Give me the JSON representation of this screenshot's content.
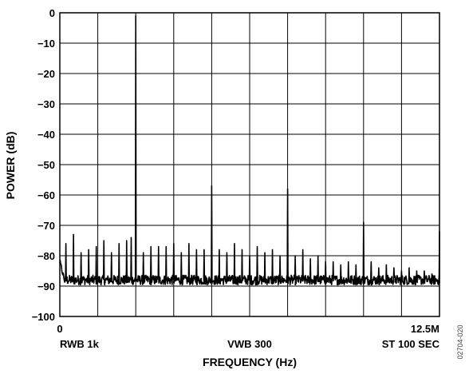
{
  "chart_data": {
    "type": "line",
    "title": "",
    "xlabel": "FREQUENCY (Hz)",
    "ylabel": "POWER (dB)",
    "xlim": [
      0,
      12.5
    ],
    "ylim": [
      -100,
      0
    ],
    "grid": true,
    "y_ticks": [
      "0",
      "−10",
      "−20",
      "−30",
      "−40",
      "−50",
      "−60",
      "−70",
      "−80",
      "−90",
      "−100"
    ],
    "x_tick_left": "0",
    "x_tick_right": "12.5M",
    "annotations": {
      "left": "RWB 1k",
      "center": "VWB 300",
      "right": "ST 100 SEC"
    },
    "figure_code": "02704-020",
    "noise_floor_db": -88,
    "peaks": [
      {
        "x": 2.5,
        "y": -1
      },
      {
        "x": 5.0,
        "y": -57
      },
      {
        "x": 7.5,
        "y": -58
      },
      {
        "x": 10.0,
        "y": -69
      },
      {
        "x": 12.5,
        "y": -72
      }
    ],
    "spurs": [
      {
        "x": 0.2,
        "y": -76
      },
      {
        "x": 0.45,
        "y": -73
      },
      {
        "x": 0.7,
        "y": -79
      },
      {
        "x": 0.95,
        "y": -78
      },
      {
        "x": 1.2,
        "y": -77
      },
      {
        "x": 1.45,
        "y": -75
      },
      {
        "x": 1.7,
        "y": -79
      },
      {
        "x": 1.95,
        "y": -76
      },
      {
        "x": 2.2,
        "y": -75
      },
      {
        "x": 2.35,
        "y": -74
      },
      {
        "x": 2.75,
        "y": -79
      },
      {
        "x": 3.0,
        "y": -77
      },
      {
        "x": 3.25,
        "y": -77
      },
      {
        "x": 3.5,
        "y": -77
      },
      {
        "x": 3.75,
        "y": -76
      },
      {
        "x": 4.0,
        "y": -79
      },
      {
        "x": 4.25,
        "y": -76
      },
      {
        "x": 4.5,
        "y": -78
      },
      {
        "x": 4.75,
        "y": -78
      },
      {
        "x": 5.25,
        "y": -78
      },
      {
        "x": 5.5,
        "y": -79
      },
      {
        "x": 5.75,
        "y": -76
      },
      {
        "x": 6.0,
        "y": -78
      },
      {
        "x": 6.25,
        "y": -80
      },
      {
        "x": 6.5,
        "y": -77
      },
      {
        "x": 6.75,
        "y": -79
      },
      {
        "x": 7.0,
        "y": -78
      },
      {
        "x": 7.25,
        "y": -80
      },
      {
        "x": 7.75,
        "y": -80
      },
      {
        "x": 8.0,
        "y": -78
      },
      {
        "x": 8.25,
        "y": -81
      },
      {
        "x": 8.5,
        "y": -80
      },
      {
        "x": 8.75,
        "y": -82
      },
      {
        "x": 9.0,
        "y": -82
      },
      {
        "x": 9.25,
        "y": -83
      },
      {
        "x": 9.5,
        "y": -82
      },
      {
        "x": 9.75,
        "y": -83
      },
      {
        "x": 10.25,
        "y": -82
      },
      {
        "x": 10.5,
        "y": -84
      },
      {
        "x": 10.75,
        "y": -83
      },
      {
        "x": 11.0,
        "y": -84
      },
      {
        "x": 11.25,
        "y": -85
      },
      {
        "x": 11.5,
        "y": -84
      },
      {
        "x": 11.75,
        "y": -85
      },
      {
        "x": 12.0,
        "y": -85
      },
      {
        "x": 12.25,
        "y": -86
      }
    ]
  }
}
